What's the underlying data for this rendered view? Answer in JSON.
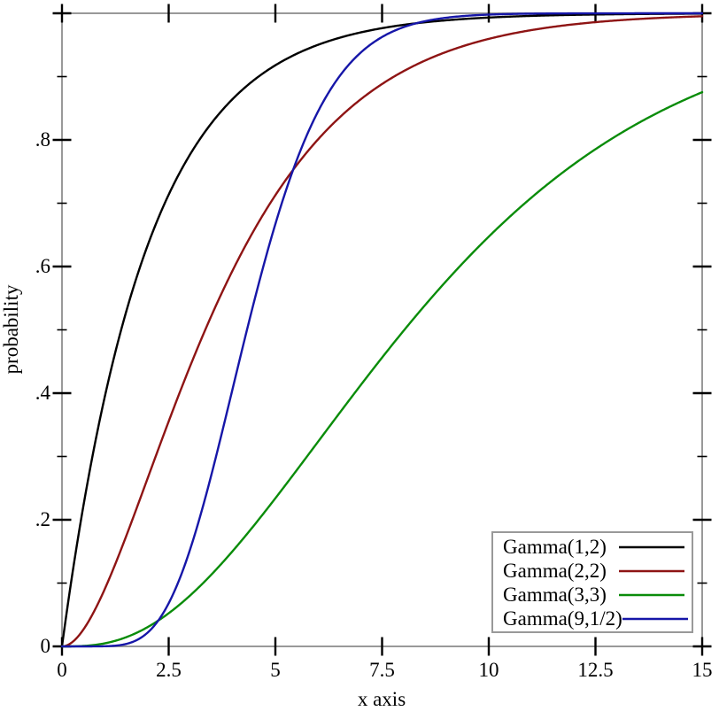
{
  "style": {
    "background": "#ffffff",
    "axis_frame_color": "#999999",
    "tick_color": "#000000",
    "text_color": "#000000",
    "legend_border_color": "#999999",
    "legend_background": "#ffffff"
  },
  "chart_data": {
    "type": "line",
    "title": "",
    "xlabel": "x axis",
    "ylabel": "probability",
    "xlim": [
      0,
      15
    ],
    "ylim": [
      0,
      1
    ],
    "grid": false,
    "legend_position": "bottom-right",
    "x_major_ticks": [
      0,
      2.5,
      5,
      7.5,
      10,
      12.5,
      15
    ],
    "x_tick_labels": [
      "0",
      "2.5",
      "5",
      "7.5",
      "10",
      "12.5",
      "15"
    ],
    "y_major_ticks": [
      0,
      0.2,
      0.4,
      0.6,
      0.8,
      1
    ],
    "y_tick_labels": [
      "0",
      ".2",
      ".4",
      ".6",
      ".8",
      ""
    ],
    "y_minor_ticks": [
      0.1,
      0.3,
      0.5,
      0.7,
      0.9
    ],
    "sample_x": [
      0,
      1,
      2,
      3,
      4,
      5,
      6,
      7,
      8,
      9,
      10,
      11,
      12,
      13,
      14,
      15
    ],
    "series": [
      {
        "name": "Gamma(1,2)",
        "color": "#000000",
        "distribution": "gamma-cdf",
        "shape": 1,
        "scale": 2,
        "cdf_values": [
          0,
          0.3935,
          0.6321,
          0.7769,
          0.8647,
          0.9179,
          0.9502,
          0.9698,
          0.9817,
          0.9889,
          0.9933,
          0.9959,
          0.9975,
          0.9985,
          0.9991,
          0.9994
        ]
      },
      {
        "name": "Gamma(2,2)",
        "color": "#8e1414",
        "distribution": "gamma-cdf",
        "shape": 2,
        "scale": 2,
        "cdf_values": [
          0,
          0.0902,
          0.2642,
          0.4422,
          0.594,
          0.7127,
          0.8009,
          0.8641,
          0.9084,
          0.9389,
          0.9596,
          0.9734,
          0.9826,
          0.9887,
          0.9927,
          0.9953
        ]
      },
      {
        "name": "Gamma(3,3)",
        "color": "#0a8c0a",
        "distribution": "gamma-cdf",
        "shape": 3,
        "scale": 3,
        "cdf_values": [
          0,
          0.0049,
          0.0302,
          0.0803,
          0.1506,
          0.2339,
          0.3233,
          0.4128,
          0.4966,
          0.5768,
          0.6472,
          0.7089,
          0.7619,
          0.8069,
          0.8444,
          0.8753
        ]
      },
      {
        "name": "Gamma(9,1/2)",
        "color": "#1616a8",
        "distribution": "gamma-cdf",
        "shape": 9,
        "scale": 0.5,
        "cdf_values": [
          0,
          0.0002,
          0.0214,
          0.1528,
          0.4075,
          0.6672,
          0.845,
          0.9379,
          0.978,
          0.9929,
          0.9979,
          0.9994,
          0.9998,
          1,
          1,
          1
        ]
      }
    ]
  }
}
